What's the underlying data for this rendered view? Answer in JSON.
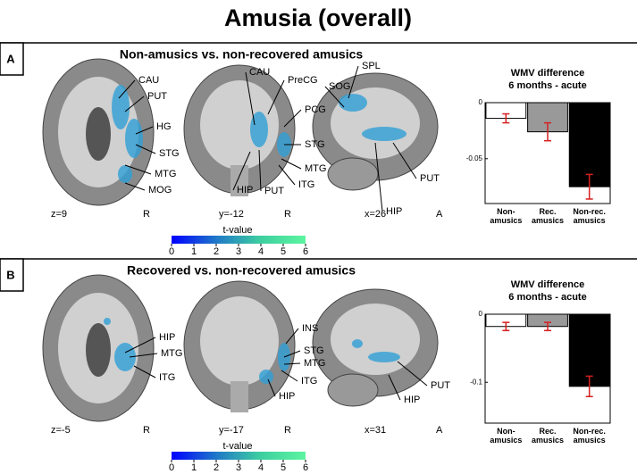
{
  "title": "Amusia (overall)",
  "panels": [
    {
      "label": "A",
      "title": "Non-amusics vs. non-recovered amusics",
      "slices": [
        {
          "coord": "z=9",
          "side": "R",
          "labels": [
            "CAU",
            "PUT",
            "HG",
            "STG",
            "MTG",
            "MOG"
          ]
        },
        {
          "coord": "y=-12",
          "side": "R",
          "labels": [
            "CAU",
            "PreCG",
            "PCG",
            "STG",
            "MTG",
            "ITG",
            "HIP",
            "PUT"
          ]
        },
        {
          "coord": "x=26",
          "side": "A",
          "labels": [
            "SPL",
            "SOG",
            "HIP",
            "PUT"
          ]
        }
      ],
      "colorbar": {
        "title": "t-value",
        "ticks": [
          0,
          1,
          2,
          3,
          4,
          5,
          6
        ],
        "colors": [
          "#0000ff",
          "#1f78c8",
          "#3ecfa0",
          "#5cf5a0"
        ]
      },
      "chart_data": {
        "type": "bar",
        "title": "WMV difference",
        "subtitle": "6 months - acute",
        "categories": [
          "Non-amusics",
          "Rec. amusics",
          "Non-rec. amusics"
        ],
        "values": [
          -0.014,
          -0.026,
          -0.075
        ],
        "errors": [
          0.004,
          0.008,
          0.011
        ],
        "colors": [
          "#ffffff",
          "#999999",
          "#000000"
        ],
        "error_color": "#d62020",
        "ylim": [
          -0.09,
          0
        ],
        "yticks": [
          -0.05,
          0
        ]
      }
    },
    {
      "label": "B",
      "title": "Recovered vs. non-recovered amusics",
      "slices": [
        {
          "coord": "z=-5",
          "side": "R",
          "labels": [
            "HIP",
            "MTG",
            "ITG"
          ]
        },
        {
          "coord": "y=-17",
          "side": "R",
          "labels": [
            "INS",
            "STG",
            "MTG",
            "ITG",
            "HIP"
          ]
        },
        {
          "coord": "x=31",
          "side": "A",
          "labels": [
            "PUT",
            "HIP"
          ]
        }
      ],
      "colorbar": {
        "title": "t-value",
        "ticks": [
          0,
          1,
          2,
          3,
          4,
          5,
          6
        ],
        "colors": [
          "#0000ff",
          "#1f78c8",
          "#3ecfa0",
          "#5cf5a0"
        ]
      },
      "chart_data": {
        "type": "bar",
        "title": "WMV difference",
        "subtitle": "6 months - acute",
        "categories": [
          "Non-amusics",
          "Rec. amusics",
          "Non-rec. amusics"
        ],
        "values": [
          -0.018,
          -0.018,
          -0.106
        ],
        "errors": [
          0.006,
          0.006,
          0.015
        ],
        "colors": [
          "#ffffff",
          "#999999",
          "#000000"
        ],
        "error_color": "#d62020",
        "ylim": [
          -0.16,
          0
        ],
        "yticks": [
          -0.1,
          0
        ]
      }
    }
  ]
}
